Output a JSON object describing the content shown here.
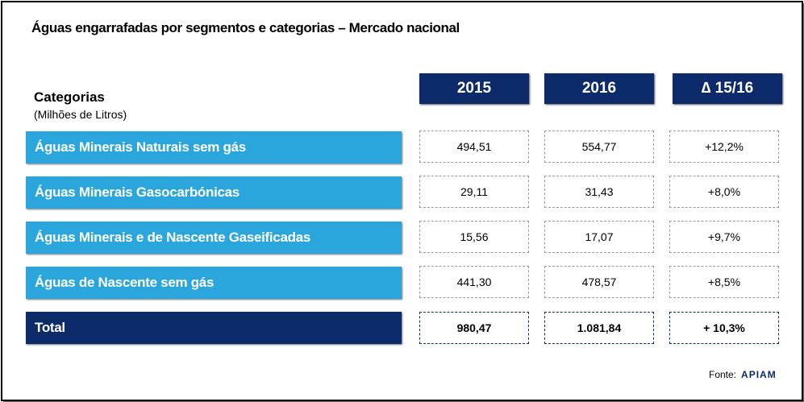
{
  "title": "Águas engarrafadas por segmentos e categorias – Mercado nacional",
  "categories_header": "Categorias",
  "unit_label": "(Milhões de Litros)",
  "columns": [
    "2015",
    "2016",
    "∆ 15/16"
  ],
  "rows": [
    {
      "label": "Águas Minerais Naturais sem gás",
      "v2015": "494,51",
      "v2016": "554,77",
      "delta": "+12,2%"
    },
    {
      "label": "Águas Minerais Gasocarbónicas",
      "v2015": "29,11",
      "v2016": "31,43",
      "delta": "+8,0%"
    },
    {
      "label": "Águas Minerais e de Nascente Gaseificadas",
      "v2015": "15,56",
      "v2016": "17,07",
      "delta": "+9,7%"
    },
    {
      "label": "Águas de Nascente sem gás",
      "v2015": "441,30",
      "v2016": "478,57",
      "delta": "+8,5%"
    }
  ],
  "total": {
    "label": "Total",
    "v2015": "980,47",
    "v2016": "1.081,84",
    "delta": "+ 10,3%"
  },
  "source_label": "Fonte:",
  "source_logo": "APIAM",
  "colors": {
    "header_navy": "#0d2a6b",
    "row_blue": "#2aa6dc"
  },
  "chart_data": {
    "type": "table",
    "title": "Águas engarrafadas por segmentos e categorias – Mercado nacional",
    "columns": [
      "Categorias",
      "2015",
      "2016",
      "∆ 15/16"
    ],
    "rows": [
      [
        "Águas Minerais Naturais sem gás",
        494.51,
        554.77,
        "+12,2%"
      ],
      [
        "Águas Minerais Gasocarbónicas",
        29.11,
        31.43,
        "+8,0%"
      ],
      [
        "Águas Minerais e de Nascente Gaseificadas",
        15.56,
        17.07,
        "+9,7%"
      ],
      [
        "Águas de Nascente sem gás",
        441.3,
        478.57,
        "+8,5%"
      ],
      [
        "Total",
        980.47,
        1081.84,
        "+ 10,3%"
      ]
    ]
  }
}
